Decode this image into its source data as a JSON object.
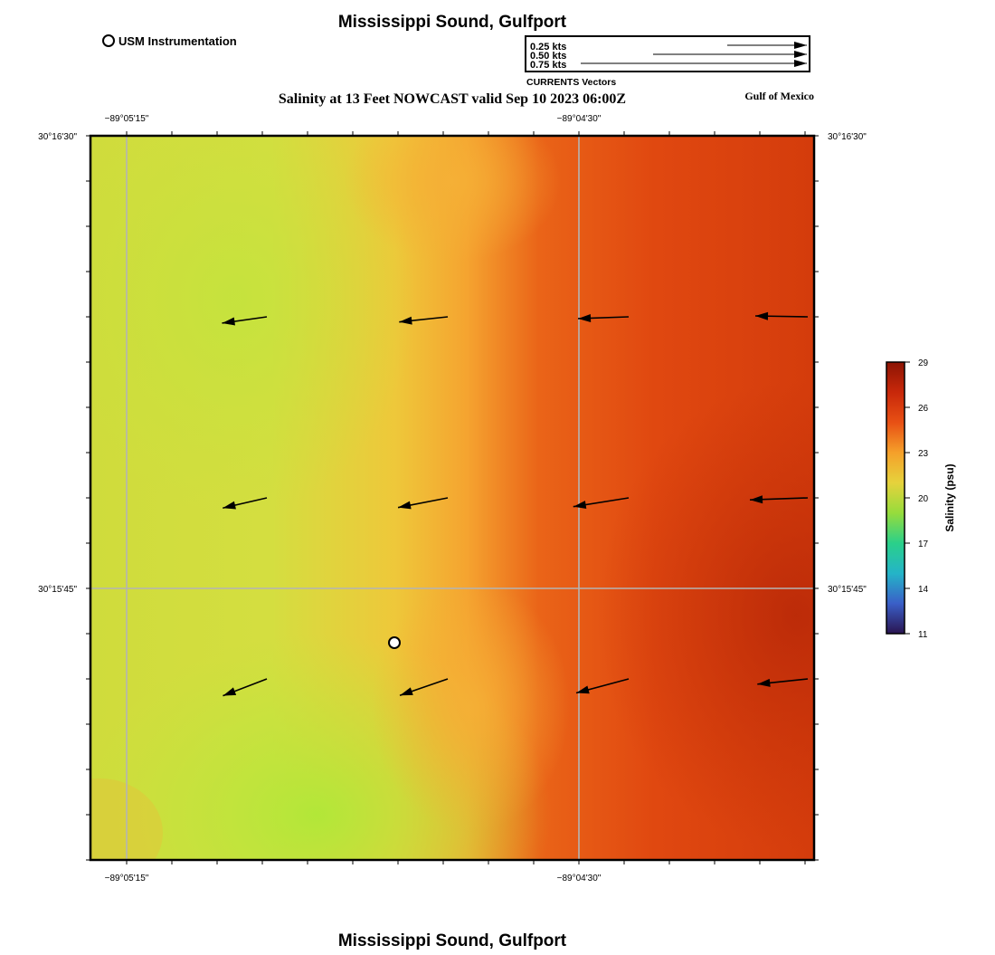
{
  "header": {
    "title": "Mississippi Sound, Gulfport",
    "subtitle": "Salinity at 13 Feet NOWCAST valid Sep 10 2023 06:00Z",
    "region": "Gulf of Mexico",
    "footer_title": "Mississippi Sound, Gulfport"
  },
  "legend": {
    "station_label": "USM Instrumentation",
    "vector_title": "CURRENTS Vectors",
    "vector_scales": [
      {
        "label": "0.25 kts",
        "speed": 0.25
      },
      {
        "label": "0.50 kts",
        "speed": 0.5
      },
      {
        "label": "0.75 kts",
        "speed": 0.75
      }
    ]
  },
  "axes": {
    "lon_top_labels": [
      "−89°05'15\"",
      "−89°04'30\""
    ],
    "lon_bottom_labels": [
      "−89°05'15\"",
      "−89°04'30\""
    ],
    "lat_left_labels": [
      "30°16'30\"",
      "30°15'45\""
    ],
    "lat_right_labels": [
      "30°16'30\"",
      "30°15'45\""
    ]
  },
  "colorbar": {
    "label": "Salinity (psu)",
    "ticks": [
      "29",
      "26",
      "23",
      "20",
      "17",
      "14",
      "11"
    ],
    "min": 11,
    "max": 29,
    "stops": [
      "#2a1450",
      "#3a5fc8",
      "#24b4c8",
      "#2ad08a",
      "#96dc3c",
      "#e6d23c",
      "#f5a02a",
      "#e85014",
      "#c8280a",
      "#8c1404"
    ]
  },
  "colors": {
    "field_low": "#b8e640",
    "field_mid": "#f5b432",
    "field_high": "#c8300a",
    "grid": "#b4b4b4",
    "arrow": "#000000"
  },
  "map_data": {
    "station": {
      "name": "USM Instrumentation",
      "col_frac": 0.42,
      "row_frac": 0.7
    },
    "vectors": [
      {
        "speed": 0.25,
        "dir_deg": 262
      },
      {
        "speed": 0.27,
        "dir_deg": 264
      },
      {
        "speed": 0.28,
        "dir_deg": 268
      },
      {
        "speed": 0.29,
        "dir_deg": 271
      },
      {
        "speed": 0.25,
        "dir_deg": 257
      },
      {
        "speed": 0.28,
        "dir_deg": 259
      },
      {
        "speed": 0.31,
        "dir_deg": 261
      },
      {
        "speed": 0.32,
        "dir_deg": 268
      },
      {
        "speed": 0.26,
        "dir_deg": 249
      },
      {
        "speed": 0.28,
        "dir_deg": 251
      },
      {
        "speed": 0.3,
        "dir_deg": 255
      },
      {
        "speed": 0.28,
        "dir_deg": 264
      }
    ]
  }
}
